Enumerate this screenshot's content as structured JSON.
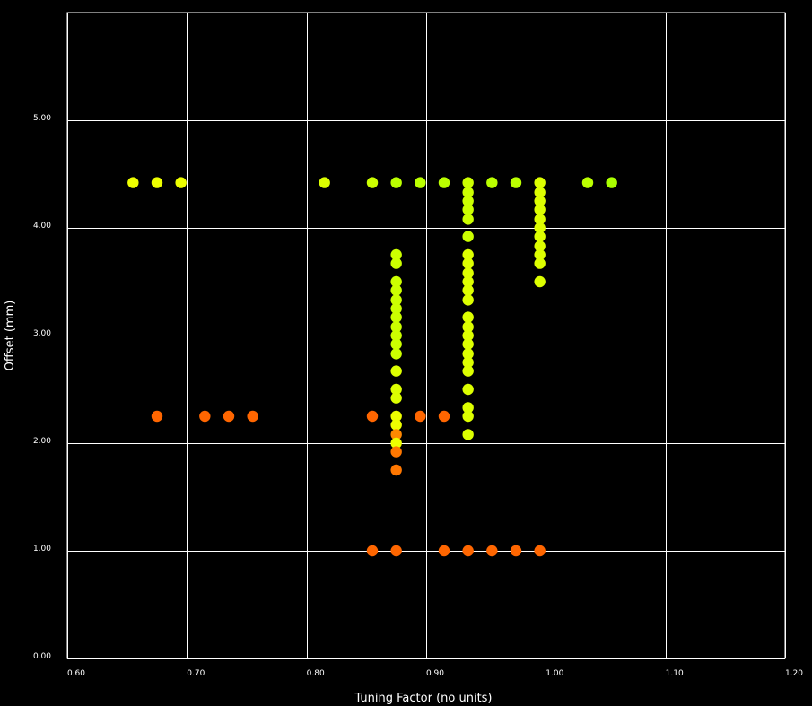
{
  "chart_data": {
    "type": "scatter",
    "title": "",
    "xlabel": "Tuning Factor (no units)",
    "ylabel": "Offset (mm)",
    "xlim": [
      0.6,
      1.2
    ],
    "ylim": [
      0.0,
      6.0
    ],
    "x_ticks": [
      0.6,
      0.7,
      0.8,
      0.9,
      1.0,
      1.1,
      1.2
    ],
    "x_tick_labels": [
      "0.60",
      "0.70",
      "0.80",
      "0.90",
      "1.00",
      "1.10",
      "1.20"
    ],
    "y_ticks": [
      0,
      1,
      2,
      3,
      4,
      5
    ],
    "y_tick_labels": [
      "0.00",
      "1.00",
      "2.00",
      "3.00",
      "4.00",
      "5.00"
    ],
    "grid": true,
    "background": "#000000",
    "foreground": "#ffffff",
    "points": [
      {
        "x": 0.655,
        "y": 4.42,
        "color": "#eeff00"
      },
      {
        "x": 0.675,
        "y": 4.42,
        "color": "#eeff00"
      },
      {
        "x": 0.695,
        "y": 4.42,
        "color": "#eeff00"
      },
      {
        "x": 0.815,
        "y": 4.42,
        "color": "#ddff00"
      },
      {
        "x": 0.855,
        "y": 4.42,
        "color": "#ccff00"
      },
      {
        "x": 0.875,
        "y": 4.42,
        "color": "#bbff00"
      },
      {
        "x": 0.895,
        "y": 4.42,
        "color": "#bbff00"
      },
      {
        "x": 0.915,
        "y": 4.42,
        "color": "#bbff00"
      },
      {
        "x": 0.955,
        "y": 4.42,
        "color": "#bbff00"
      },
      {
        "x": 0.975,
        "y": 4.42,
        "color": "#bbff00"
      },
      {
        "x": 1.035,
        "y": 4.42,
        "color": "#bbff00"
      },
      {
        "x": 1.055,
        "y": 4.42,
        "color": "#aaff00"
      },
      {
        "x": 0.935,
        "y": 4.42,
        "color": "#ccff00"
      },
      {
        "x": 0.935,
        "y": 4.33,
        "color": "#ccff00"
      },
      {
        "x": 0.935,
        "y": 4.25,
        "color": "#ccff00"
      },
      {
        "x": 0.935,
        "y": 4.17,
        "color": "#ccff00"
      },
      {
        "x": 0.935,
        "y": 4.08,
        "color": "#ccff00"
      },
      {
        "x": 0.935,
        "y": 3.92,
        "color": "#ccff00"
      },
      {
        "x": 0.935,
        "y": 3.75,
        "color": "#ddff00"
      },
      {
        "x": 0.935,
        "y": 3.67,
        "color": "#ddff00"
      },
      {
        "x": 0.935,
        "y": 3.58,
        "color": "#ddff00"
      },
      {
        "x": 0.935,
        "y": 3.5,
        "color": "#ddff00"
      },
      {
        "x": 0.935,
        "y": 3.42,
        "color": "#ddff00"
      },
      {
        "x": 0.935,
        "y": 3.33,
        "color": "#ddff00"
      },
      {
        "x": 0.935,
        "y": 3.17,
        "color": "#ddff00"
      },
      {
        "x": 0.935,
        "y": 3.08,
        "color": "#ddff00"
      },
      {
        "x": 0.935,
        "y": 3.0,
        "color": "#ddff00"
      },
      {
        "x": 0.935,
        "y": 2.92,
        "color": "#ddff00"
      },
      {
        "x": 0.935,
        "y": 2.83,
        "color": "#ddff00"
      },
      {
        "x": 0.935,
        "y": 2.75,
        "color": "#ddff00"
      },
      {
        "x": 0.935,
        "y": 2.67,
        "color": "#ddff00"
      },
      {
        "x": 0.935,
        "y": 2.5,
        "color": "#ddff00"
      },
      {
        "x": 0.935,
        "y": 2.33,
        "color": "#ddff00"
      },
      {
        "x": 0.935,
        "y": 2.25,
        "color": "#ddff00"
      },
      {
        "x": 0.935,
        "y": 2.08,
        "color": "#ddff00"
      },
      {
        "x": 0.995,
        "y": 4.42,
        "color": "#ddff00"
      },
      {
        "x": 0.995,
        "y": 4.33,
        "color": "#ddff00"
      },
      {
        "x": 0.995,
        "y": 4.25,
        "color": "#ddff00"
      },
      {
        "x": 0.995,
        "y": 4.17,
        "color": "#ddff00"
      },
      {
        "x": 0.995,
        "y": 4.08,
        "color": "#ddff00"
      },
      {
        "x": 0.995,
        "y": 4.0,
        "color": "#ddff00"
      },
      {
        "x": 0.995,
        "y": 3.92,
        "color": "#ddff00"
      },
      {
        "x": 0.995,
        "y": 3.83,
        "color": "#ddff00"
      },
      {
        "x": 0.995,
        "y": 3.75,
        "color": "#ddff00"
      },
      {
        "x": 0.995,
        "y": 3.67,
        "color": "#ddff00"
      },
      {
        "x": 0.995,
        "y": 3.5,
        "color": "#ddff00"
      },
      {
        "x": 0.875,
        "y": 3.75,
        "color": "#ccff00"
      },
      {
        "x": 0.875,
        "y": 3.67,
        "color": "#ccff00"
      },
      {
        "x": 0.875,
        "y": 3.5,
        "color": "#ccff00"
      },
      {
        "x": 0.875,
        "y": 3.42,
        "color": "#ccff00"
      },
      {
        "x": 0.875,
        "y": 3.33,
        "color": "#ccff00"
      },
      {
        "x": 0.875,
        "y": 3.25,
        "color": "#ccff00"
      },
      {
        "x": 0.875,
        "y": 3.17,
        "color": "#ccff00"
      },
      {
        "x": 0.875,
        "y": 3.08,
        "color": "#ccff00"
      },
      {
        "x": 0.875,
        "y": 3.0,
        "color": "#ccff00"
      },
      {
        "x": 0.875,
        "y": 2.92,
        "color": "#ccff00"
      },
      {
        "x": 0.875,
        "y": 2.83,
        "color": "#ccff00"
      },
      {
        "x": 0.875,
        "y": 2.67,
        "color": "#ddff00"
      },
      {
        "x": 0.875,
        "y": 2.5,
        "color": "#ddff00"
      },
      {
        "x": 0.875,
        "y": 2.42,
        "color": "#ddff00"
      },
      {
        "x": 0.875,
        "y": 2.25,
        "color": "#eeff00"
      },
      {
        "x": 0.875,
        "y": 2.17,
        "color": "#eeff00"
      },
      {
        "x": 0.875,
        "y": 2.08,
        "color": "#ff8800"
      },
      {
        "x": 0.875,
        "y": 2.0,
        "color": "#eeff00"
      },
      {
        "x": 0.875,
        "y": 1.92,
        "color": "#ff7700"
      },
      {
        "x": 0.875,
        "y": 1.75,
        "color": "#ff7700"
      },
      {
        "x": 0.675,
        "y": 2.25,
        "color": "#ff6600"
      },
      {
        "x": 0.715,
        "y": 2.25,
        "color": "#ff6600"
      },
      {
        "x": 0.735,
        "y": 2.25,
        "color": "#ff6600"
      },
      {
        "x": 0.755,
        "y": 2.25,
        "color": "#ff6600"
      },
      {
        "x": 0.855,
        "y": 2.25,
        "color": "#ff6600"
      },
      {
        "x": 0.895,
        "y": 2.25,
        "color": "#ff6600"
      },
      {
        "x": 0.915,
        "y": 2.25,
        "color": "#ff6600"
      },
      {
        "x": 0.855,
        "y": 1.0,
        "color": "#ff6600"
      },
      {
        "x": 0.875,
        "y": 1.0,
        "color": "#ff6600"
      },
      {
        "x": 0.915,
        "y": 1.0,
        "color": "#ff6600"
      },
      {
        "x": 0.935,
        "y": 1.0,
        "color": "#ff6600"
      },
      {
        "x": 0.955,
        "y": 1.0,
        "color": "#ff6600"
      },
      {
        "x": 0.975,
        "y": 1.0,
        "color": "#ff6600"
      },
      {
        "x": 0.995,
        "y": 1.0,
        "color": "#ff6600"
      }
    ]
  }
}
